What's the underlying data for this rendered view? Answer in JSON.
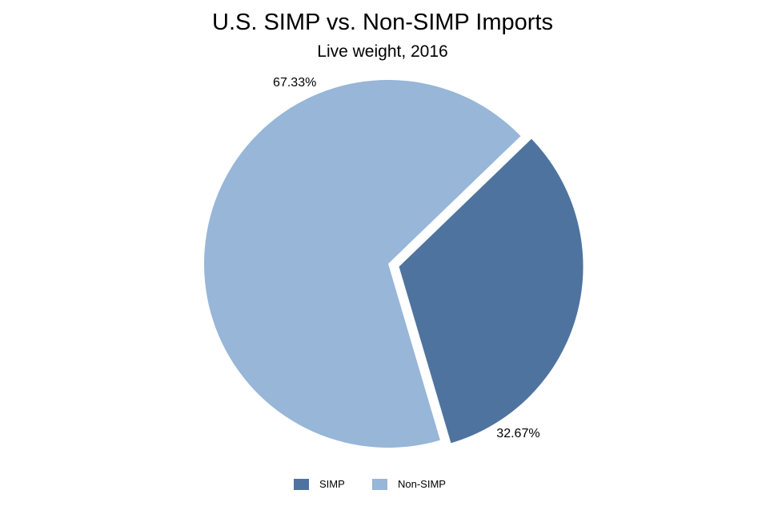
{
  "chart_data": {
    "type": "pie",
    "title": "U.S. SIMP vs. Non-SIMP Imports",
    "subtitle": "Live weight, 2016",
    "slices": [
      {
        "name": "SIMP",
        "value": 32.67,
        "label": "32.67%",
        "color": "#4f739f",
        "exploded": true
      },
      {
        "name": "Non-SIMP",
        "value": 67.33,
        "label": "67.33%",
        "color": "#97b6d8",
        "exploded": false
      }
    ],
    "legend_position": "bottom",
    "background": "#ffffff"
  }
}
